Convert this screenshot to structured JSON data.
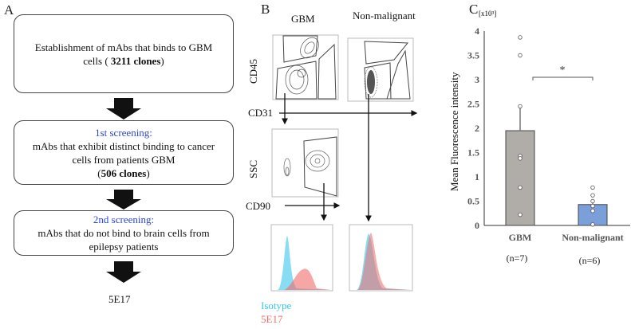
{
  "panelA": {
    "label": "A",
    "box1": {
      "line1": "Establishment of mAbs that binds to GBM",
      "line2_pre": "cells ( ",
      "line2_bold": "3211 clones",
      "line2_post": ")"
    },
    "box2": {
      "heading": "1st screening:",
      "line1": "mAbs that exhibit distinct binding to cancer",
      "line2": "cells from patients GBM",
      "line3_pre": "(",
      "line3_bold": "506 clones",
      "line3_post": ")"
    },
    "box3": {
      "heading": "2nd screening:",
      "line1": "mAbs that do not bind to brain cells from",
      "line2": "epilepsy patients"
    },
    "result": "5E17",
    "heading_color": "#2a46e0"
  },
  "panelB": {
    "label": "B",
    "col_gbm": "GBM",
    "col_nonmal": "Non-malignant",
    "axis_cd45": "CD45",
    "axis_cd31": "CD31",
    "axis_ssc": "SSC",
    "axis_cd90": "CD90",
    "legend_isotype": "Isotype",
    "legend_5e17": "5E17",
    "isotype_color": "#38c6ee",
    "ab_color": "#f26a6a"
  },
  "chart_data": {
    "type": "bar",
    "label": "C",
    "scale_note": "[x10³]",
    "ylabel": "Mean  Fluorescence intensity",
    "ylim": [
      0,
      4
    ],
    "yticks": [
      "0",
      "0.5",
      "1",
      "1.5",
      "2",
      "2.5",
      "3",
      "3.5",
      "4"
    ],
    "categories": [
      "GBM",
      "Non-malignant"
    ],
    "n_labels": [
      "(n=7)",
      "(n=6)"
    ],
    "values": [
      1.95,
      0.43
    ],
    "errors": [
      0.5,
      0.07
    ],
    "bar_colors": [
      "#b0aca8",
      "#7b9fd8"
    ],
    "points": [
      [
        3.87,
        3.5,
        2.45,
        1.43,
        1.38,
        0.78,
        0.22
      ],
      [
        0.78,
        0.62,
        0.5,
        0.4,
        0.3,
        0.02
      ]
    ],
    "significance": {
      "label": "*",
      "level": 3.05
    }
  }
}
